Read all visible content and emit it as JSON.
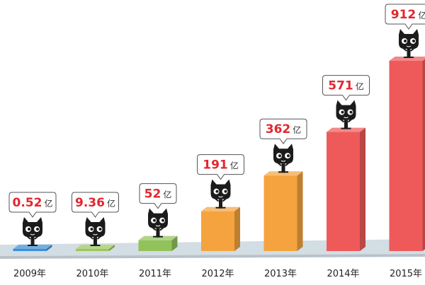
{
  "chart_data": {
    "type": "bar",
    "title": "",
    "xlabel": "",
    "ylabel": "",
    "ylim": [
      0,
      912
    ],
    "grid": false,
    "legend": "none",
    "categories": [
      "2009年",
      "2010年",
      "2011年",
      "2012年",
      "2013年",
      "2014年",
      "2015年"
    ],
    "values": [
      0.52,
      9.36,
      52,
      191,
      362,
      571,
      912
    ],
    "value_labels": [
      {
        "number": "0.52",
        "unit": "亿"
      },
      {
        "number": "9.36",
        "unit": "亿"
      },
      {
        "number": "52",
        "unit": "亿"
      },
      {
        "number": "191",
        "unit": "亿"
      },
      {
        "number": "362",
        "unit": "亿"
      },
      {
        "number": "571",
        "unit": "亿"
      },
      {
        "number": "912",
        "unit": "亿"
      }
    ],
    "bar_colors": [
      "#3d8fd6",
      "#9cc65a",
      "#92c35b",
      "#f5a33f",
      "#f5a33f",
      "#ee5a5a",
      "#ee5a5a"
    ],
    "marker_icon": "tmall-cat-icon"
  },
  "colors": {
    "floor": "#d2dde4",
    "label_red": "#e3262e",
    "unit_text": "#333333",
    "axis_text": "#222222"
  }
}
